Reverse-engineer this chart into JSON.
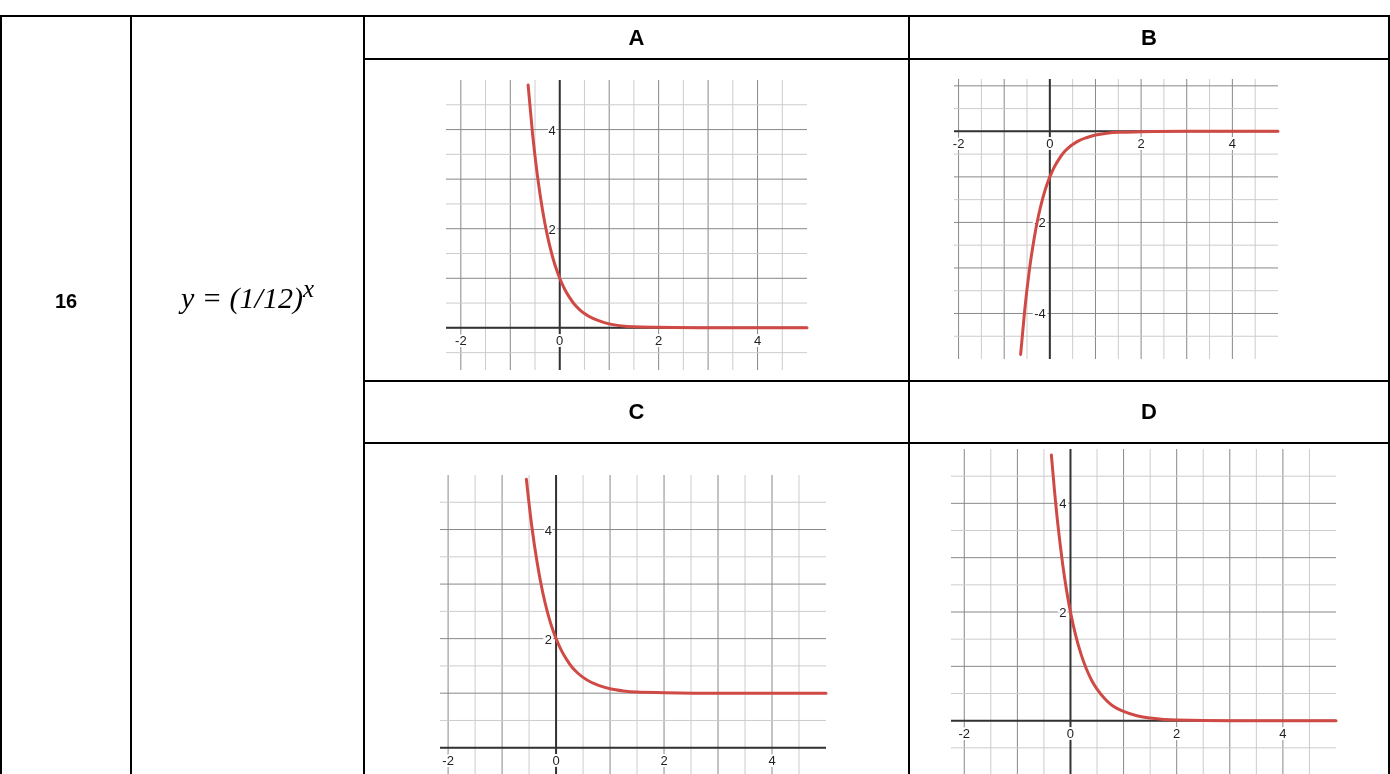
{
  "chart_data": [
    {
      "type": "line",
      "title": "A",
      "annotations": [
        "16",
        "y = (1/12)$^{x}$"
      ],
      "xlim": [
        -2.3,
        5
      ],
      "ylim": [
        -0.85,
        5
      ],
      "xticks": [
        -2,
        {
          "value": -1.5,
          "label": null
        },
        {
          "value": -1,
          "label": null
        },
        {
          "value": -0.5,
          "label": null
        },
        0,
        {
          "value": 0.5,
          "label": null
        },
        {
          "value": 1,
          "label": null
        },
        {
          "value": 1.5,
          "label": null
        },
        2,
        {
          "value": 2.5,
          "label": null
        },
        {
          "value": 3,
          "label": null
        },
        {
          "value": 3.5,
          "label": null
        },
        4,
        {
          "value": 4.5,
          "label": null
        }
      ],
      "yticks": [
        {
          "value": -0.5,
          "label": null
        },
        {
          "value": 0,
          "label": null
        },
        {
          "value": 0.5,
          "label": null
        },
        {
          "value": 1,
          "label": null
        },
        {
          "value": 1.5,
          "label": null
        },
        2,
        {
          "value": 2.5,
          "label": null
        },
        {
          "value": 3,
          "label": null
        },
        {
          "value": 3.5,
          "label": null
        },
        4,
        {
          "value": 4.5,
          "label": null
        }
      ],
      "grid": true,
      "marker": "none",
      "line_style": "solid",
      "series": [
        {
          "color": "#d04a45",
          "x": [
            -0.64,
            -0.55,
            -0.45,
            -0.35,
            -0.25,
            -0.15,
            -0.05,
            0,
            0.1,
            0.2,
            0.3,
            0.4,
            0.5,
            0.65,
            0.8,
            1,
            1.25,
            1.5,
            2,
            3,
            4,
            5
          ],
          "values": [
            4.9,
            3.92,
            3.06,
            2.39,
            1.86,
            1.45,
            1.13,
            1,
            0.78,
            0.61,
            0.47,
            0.37,
            0.29,
            0.2,
            0.14,
            0.08,
            0.04,
            0.02,
            0.01,
            0,
            0,
            0
          ]
        }
      ]
    },
    {
      "type": "line",
      "title": "B",
      "xlim": [
        -2.1,
        5
      ],
      "ylim": [
        -5,
        1.15
      ],
      "xticks": [
        -2,
        {
          "value": -1.5,
          "label": null
        },
        {
          "value": -1,
          "label": null
        },
        {
          "value": -0.5,
          "label": null
        },
        0,
        {
          "value": 0.5,
          "label": null
        },
        {
          "value": 1,
          "label": null
        },
        {
          "value": 1.5,
          "label": null
        },
        2,
        {
          "value": 2.5,
          "label": null
        },
        {
          "value": 3,
          "label": null
        },
        {
          "value": 3.5,
          "label": null
        },
        4,
        {
          "value": 4.5,
          "label": null
        }
      ],
      "yticks": [
        {
          "value": -4.5,
          "label": null
        },
        -4,
        {
          "value": -3.5,
          "label": null
        },
        {
          "value": -3,
          "label": null
        },
        {
          "value": -2.5,
          "label": null
        },
        -2,
        {
          "value": -1.5,
          "label": null
        },
        {
          "value": -1,
          "label": null
        },
        {
          "value": -0.5,
          "label": null
        },
        {
          "value": 0,
          "label": null
        },
        {
          "value": 0.5,
          "label": null
        },
        {
          "value": 1,
          "label": null
        }
      ],
      "grid": true,
      "marker": "none",
      "line_style": "solid",
      "series": [
        {
          "color": "#d04a45",
          "x": [
            -0.64,
            -0.55,
            -0.45,
            -0.35,
            -0.25,
            -0.15,
            -0.05,
            0,
            0.1,
            0.2,
            0.3,
            0.4,
            0.5,
            0.65,
            0.8,
            1,
            1.25,
            1.5,
            2,
            3,
            4,
            5
          ],
          "values": [
            -4.9,
            -3.92,
            -3.06,
            -2.39,
            -1.86,
            -1.45,
            -1.13,
            -1,
            -0.78,
            -0.61,
            -0.47,
            -0.37,
            -0.29,
            -0.2,
            -0.14,
            -0.08,
            -0.04,
            -0.02,
            -0.01,
            0,
            0,
            0
          ]
        }
      ]
    },
    {
      "type": "line",
      "title": "C",
      "xlim": [
        -2.15,
        5
      ],
      "ylim": [
        -0.5,
        5
      ],
      "xticks": [
        -2,
        {
          "value": -1.5,
          "label": null
        },
        {
          "value": -1,
          "label": null
        },
        {
          "value": -0.5,
          "label": null
        },
        0,
        {
          "value": 0.5,
          "label": null
        },
        {
          "value": 1,
          "label": null
        },
        {
          "value": 1.5,
          "label": null
        },
        2,
        {
          "value": 2.5,
          "label": null
        },
        {
          "value": 3,
          "label": null
        },
        {
          "value": 3.5,
          "label": null
        },
        4,
        {
          "value": 4.5,
          "label": null
        }
      ],
      "yticks": [
        {
          "value": 0,
          "label": null
        },
        {
          "value": 0.5,
          "label": null
        },
        {
          "value": 1,
          "label": null
        },
        {
          "value": 1.5,
          "label": null
        },
        2,
        {
          "value": 2.5,
          "label": null
        },
        {
          "value": 3,
          "label": null
        },
        {
          "value": 3.5,
          "label": null
        },
        4,
        {
          "value": 4.5,
          "label": null
        }
      ],
      "grid": true,
      "marker": "none",
      "line_style": "solid",
      "series": [
        {
          "color": "#d04a45",
          "x": [
            -0.55,
            -0.45,
            -0.35,
            -0.25,
            -0.15,
            -0.05,
            0,
            0.1,
            0.2,
            0.3,
            0.4,
            0.5,
            0.65,
            0.8,
            1,
            1.25,
            1.5,
            2,
            3,
            4,
            5
          ],
          "values": [
            4.92,
            4.06,
            3.39,
            2.86,
            2.45,
            2.13,
            2,
            1.78,
            1.61,
            1.47,
            1.37,
            1.29,
            1.2,
            1.14,
            1.08,
            1.04,
            1.02,
            1.01,
            1,
            1,
            1
          ]
        }
      ]
    },
    {
      "type": "line",
      "title": "D",
      "xlim": [
        -2.25,
        5
      ],
      "ylim": [
        -1,
        5
      ],
      "xticks": [
        -2,
        {
          "value": -1.5,
          "label": null
        },
        {
          "value": -1,
          "label": null
        },
        {
          "value": -0.5,
          "label": null
        },
        0,
        {
          "value": 0.5,
          "label": null
        },
        {
          "value": 1,
          "label": null
        },
        {
          "value": 1.5,
          "label": null
        },
        2,
        {
          "value": 2.5,
          "label": null
        },
        {
          "value": 3,
          "label": null
        },
        {
          "value": 3.5,
          "label": null
        },
        4,
        {
          "value": 4.5,
          "label": null
        }
      ],
      "yticks": [
        {
          "value": -0.5,
          "label": null
        },
        {
          "value": 0,
          "label": null
        },
        {
          "value": 0.5,
          "label": null
        },
        {
          "value": 1,
          "label": null
        },
        {
          "value": 1.5,
          "label": null
        },
        2,
        {
          "value": 2.5,
          "label": null
        },
        {
          "value": 3,
          "label": null
        },
        {
          "value": 3.5,
          "label": null
        },
        4,
        {
          "value": 4.5,
          "label": null
        }
      ],
      "grid": true,
      "marker": "none",
      "line_style": "solid",
      "series": [
        {
          "color": "#d04a45",
          "x": [
            -0.36,
            -0.3,
            -0.25,
            -0.2,
            -0.15,
            -0.1,
            -0.05,
            0,
            0.1,
            0.2,
            0.3,
            0.4,
            0.5,
            0.65,
            0.8,
            1,
            1.25,
            1.5,
            2,
            3,
            5
          ],
          "values": [
            4.89,
            4.22,
            3.72,
            3.29,
            2.9,
            2.56,
            2.26,
            2,
            1.56,
            1.22,
            0.95,
            0.74,
            0.58,
            0.4,
            0.27,
            0.17,
            0.09,
            0.05,
            0.01,
            0,
            0
          ]
        }
      ]
    }
  ]
}
